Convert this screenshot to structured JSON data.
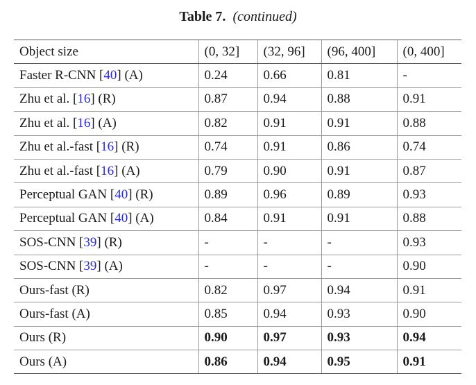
{
  "caption": {
    "label": "Table 7.",
    "subtitle": "(continued)"
  },
  "headers": [
    "Object size",
    "(0, 32]",
    "(32, 96]",
    "(96, 400]",
    "(0, 400]"
  ],
  "rows": [
    {
      "name_pre": "Faster R-CNN [",
      "ref": "40",
      "name_post": "] (A)",
      "values": [
        "0.24",
        "0.66",
        "0.81",
        "-"
      ],
      "bold": false
    },
    {
      "name_pre": "Zhu et al. [",
      "ref": "16",
      "name_post": "] (R)",
      "values": [
        "0.87",
        "0.94",
        "0.88",
        "0.91"
      ],
      "bold": false
    },
    {
      "name_pre": "Zhu et al. [",
      "ref": "16",
      "name_post": "] (A)",
      "values": [
        "0.82",
        "0.91",
        "0.91",
        "0.88"
      ],
      "bold": false
    },
    {
      "name_pre": "Zhu et al.-fast [",
      "ref": "16",
      "name_post": "] (R)",
      "values": [
        "0.74",
        "0.91",
        "0.86",
        "0.74"
      ],
      "bold": false
    },
    {
      "name_pre": "Zhu et al.-fast [",
      "ref": "16",
      "name_post": "] (A)",
      "values": [
        "0.79",
        "0.90",
        "0.91",
        "0.87"
      ],
      "bold": false
    },
    {
      "name_pre": "Perceptual GAN [",
      "ref": "40",
      "name_post": "] (R)",
      "values": [
        "0.89",
        "0.96",
        "0.89",
        "0.93"
      ],
      "bold": false
    },
    {
      "name_pre": "Perceptual GAN [",
      "ref": "40",
      "name_post": "] (A)",
      "values": [
        "0.84",
        "0.91",
        "0.91",
        "0.88"
      ],
      "bold": false
    },
    {
      "name_pre": "SOS-CNN [",
      "ref": "39",
      "name_post": "] (R)",
      "values": [
        "-",
        "-",
        "-",
        "0.93"
      ],
      "bold": false
    },
    {
      "name_pre": "SOS-CNN [",
      "ref": "39",
      "name_post": "] (A)",
      "values": [
        "-",
        "-",
        "-",
        "0.90"
      ],
      "bold": false
    },
    {
      "name_pre": "Ours-fast (R)",
      "ref": "",
      "name_post": "",
      "values": [
        "0.82",
        "0.97",
        "0.94",
        "0.91"
      ],
      "bold": false
    },
    {
      "name_pre": "Ours-fast (A)",
      "ref": "",
      "name_post": "",
      "values": [
        "0.85",
        "0.94",
        "0.93",
        "0.90"
      ],
      "bold": false
    },
    {
      "name_pre": "Ours (R)",
      "ref": "",
      "name_post": "",
      "values": [
        "0.90",
        "0.97",
        "0.93",
        "0.94"
      ],
      "bold": true
    },
    {
      "name_pre": "Ours (A)",
      "ref": "",
      "name_post": "",
      "values": [
        "0.86",
        "0.94",
        "0.95",
        "0.91"
      ],
      "bold": true
    }
  ]
}
